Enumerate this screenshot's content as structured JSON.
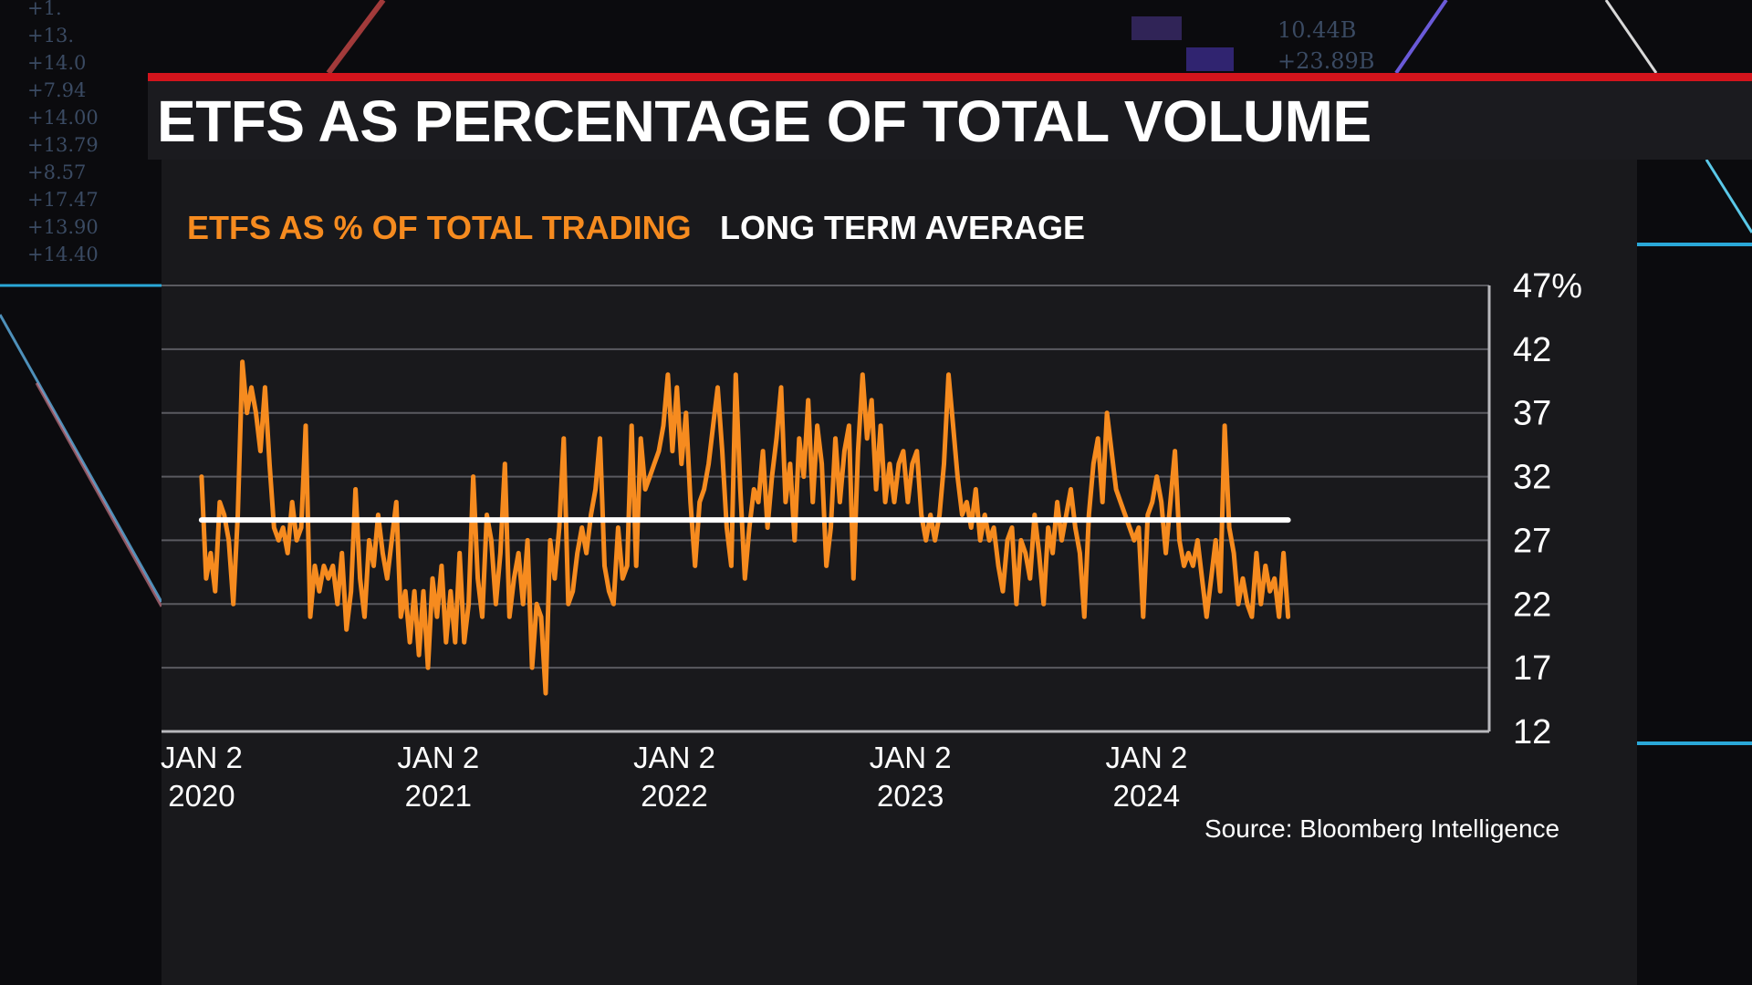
{
  "header": {
    "title": "ETFS AS PERCENTAGE OF TOTAL VOLUME"
  },
  "legend": {
    "series_label": "ETFS AS % OF TOTAL TRADING",
    "average_label": "LONG TERM AVERAGE"
  },
  "source": "Source: Bloomberg Intelligence",
  "background_ticker": [
    "+1.",
    "+13.",
    "+14.0",
    "+7.94",
    "+14.00",
    "+13.79",
    "+8.57",
    "+17.47",
    "+13.90",
    "+14.40",
    "10.44B",
    "+23.89B"
  ],
  "colors": {
    "series": "#f68b1f",
    "average": "#ffffff",
    "accent_red": "#d3141c",
    "gridline": "#5a5a60",
    "background": "#19191c"
  },
  "chart_data": {
    "type": "line",
    "title": "ETFS AS PERCENTAGE OF TOTAL VOLUME",
    "x_tick_labels": [
      {
        "date": "2020-01-02",
        "line1": "JAN 2",
        "line2": "2020"
      },
      {
        "date": "2021-01-02",
        "line1": "JAN 2",
        "line2": "2021"
      },
      {
        "date": "2022-01-02",
        "line1": "JAN 2",
        "line2": "2022"
      },
      {
        "date": "2023-01-02",
        "line1": "JAN 2",
        "line2": "2023"
      },
      {
        "date": "2024-01-02",
        "line1": "JAN 2",
        "line2": "2024"
      }
    ],
    "y_tick_labels": [
      "47%",
      "42",
      "37",
      "32",
      "27",
      "22",
      "17",
      "12"
    ],
    "y_ticks": [
      47,
      42,
      37,
      32,
      27,
      22,
      17,
      12
    ],
    "ylim": [
      12,
      47
    ],
    "xlim": [
      "2019-11-01",
      "2025-06-15"
    ],
    "grid": true,
    "y_axis_side": "right",
    "series": [
      {
        "name": "ETFS AS % OF TOTAL TRADING",
        "color": "#f68b1f",
        "points": [
          [
            "2020-01-02",
            32
          ],
          [
            "2020-01-09",
            24
          ],
          [
            "2020-01-16",
            26
          ],
          [
            "2020-01-23",
            23
          ],
          [
            "2020-01-30",
            30
          ],
          [
            "2020-02-06",
            29
          ],
          [
            "2020-02-13",
            27
          ],
          [
            "2020-02-20",
            22
          ],
          [
            "2020-02-27",
            29
          ],
          [
            "2020-03-05",
            41
          ],
          [
            "2020-03-12",
            37
          ],
          [
            "2020-03-19",
            39
          ],
          [
            "2020-03-26",
            37
          ],
          [
            "2020-04-02",
            34
          ],
          [
            "2020-04-09",
            39
          ],
          [
            "2020-04-16",
            33
          ],
          [
            "2020-04-23",
            28
          ],
          [
            "2020-04-30",
            27
          ],
          [
            "2020-05-07",
            28
          ],
          [
            "2020-05-14",
            26
          ],
          [
            "2020-05-21",
            30
          ],
          [
            "2020-05-28",
            27
          ],
          [
            "2020-06-04",
            28
          ],
          [
            "2020-06-11",
            36
          ],
          [
            "2020-06-18",
            21
          ],
          [
            "2020-06-25",
            25
          ],
          [
            "2020-07-02",
            23
          ],
          [
            "2020-07-09",
            25
          ],
          [
            "2020-07-16",
            24
          ],
          [
            "2020-07-23",
            25
          ],
          [
            "2020-07-30",
            22
          ],
          [
            "2020-08-06",
            26
          ],
          [
            "2020-08-13",
            20
          ],
          [
            "2020-08-20",
            23
          ],
          [
            "2020-08-27",
            31
          ],
          [
            "2020-09-03",
            24
          ],
          [
            "2020-09-10",
            21
          ],
          [
            "2020-09-17",
            27
          ],
          [
            "2020-09-24",
            25
          ],
          [
            "2020-10-01",
            29
          ],
          [
            "2020-10-08",
            26
          ],
          [
            "2020-10-15",
            24
          ],
          [
            "2020-10-22",
            27
          ],
          [
            "2020-10-29",
            30
          ],
          [
            "2020-11-05",
            21
          ],
          [
            "2020-11-12",
            23
          ],
          [
            "2020-11-19",
            19
          ],
          [
            "2020-11-26",
            23
          ],
          [
            "2020-12-03",
            18
          ],
          [
            "2020-12-10",
            23
          ],
          [
            "2020-12-17",
            17
          ],
          [
            "2020-12-24",
            24
          ],
          [
            "2020-12-31",
            21
          ],
          [
            "2021-01-07",
            25
          ],
          [
            "2021-01-14",
            19
          ],
          [
            "2021-01-21",
            23
          ],
          [
            "2021-01-28",
            19
          ],
          [
            "2021-02-04",
            26
          ],
          [
            "2021-02-11",
            19
          ],
          [
            "2021-02-18",
            22
          ],
          [
            "2021-02-25",
            32
          ],
          [
            "2021-03-04",
            24
          ],
          [
            "2021-03-11",
            21
          ],
          [
            "2021-03-18",
            29
          ],
          [
            "2021-03-25",
            27
          ],
          [
            "2021-04-01",
            22
          ],
          [
            "2021-04-08",
            26
          ],
          [
            "2021-04-15",
            33
          ],
          [
            "2021-04-22",
            21
          ],
          [
            "2021-04-29",
            24
          ],
          [
            "2021-05-06",
            26
          ],
          [
            "2021-05-13",
            22
          ],
          [
            "2021-05-20",
            27
          ],
          [
            "2021-05-27",
            17
          ],
          [
            "2021-06-03",
            22
          ],
          [
            "2021-06-10",
            21
          ],
          [
            "2021-06-17",
            15
          ],
          [
            "2021-06-24",
            27
          ],
          [
            "2021-07-01",
            24
          ],
          [
            "2021-07-08",
            28
          ],
          [
            "2021-07-15",
            35
          ],
          [
            "2021-07-22",
            22
          ],
          [
            "2021-07-29",
            23
          ],
          [
            "2021-08-05",
            26
          ],
          [
            "2021-08-12",
            28
          ],
          [
            "2021-08-19",
            26
          ],
          [
            "2021-08-26",
            29
          ],
          [
            "2021-09-02",
            31
          ],
          [
            "2021-09-09",
            35
          ],
          [
            "2021-09-16",
            25
          ],
          [
            "2021-09-23",
            23
          ],
          [
            "2021-09-30",
            22
          ],
          [
            "2021-10-07",
            28
          ],
          [
            "2021-10-14",
            24
          ],
          [
            "2021-10-21",
            25
          ],
          [
            "2021-10-28",
            36
          ],
          [
            "2021-11-04",
            25
          ],
          [
            "2021-11-11",
            35
          ],
          [
            "2021-11-18",
            31
          ],
          [
            "2021-11-25",
            32
          ],
          [
            "2021-12-02",
            33
          ],
          [
            "2021-12-09",
            34
          ],
          [
            "2021-12-16",
            36
          ],
          [
            "2021-12-23",
            40
          ],
          [
            "2021-12-30",
            34
          ],
          [
            "2022-01-06",
            39
          ],
          [
            "2022-01-13",
            33
          ],
          [
            "2022-01-20",
            37
          ],
          [
            "2022-01-27",
            30
          ],
          [
            "2022-02-03",
            25
          ],
          [
            "2022-02-10",
            30
          ],
          [
            "2022-02-17",
            31
          ],
          [
            "2022-02-24",
            33
          ],
          [
            "2022-03-03",
            36
          ],
          [
            "2022-03-10",
            39
          ],
          [
            "2022-03-17",
            34
          ],
          [
            "2022-03-24",
            28
          ],
          [
            "2022-03-31",
            25
          ],
          [
            "2022-04-07",
            40
          ],
          [
            "2022-04-14",
            31
          ],
          [
            "2022-04-21",
            24
          ],
          [
            "2022-04-28",
            28
          ],
          [
            "2022-05-05",
            31
          ],
          [
            "2022-05-12",
            30
          ],
          [
            "2022-05-19",
            34
          ],
          [
            "2022-05-26",
            28
          ],
          [
            "2022-06-02",
            32
          ],
          [
            "2022-06-09",
            35
          ],
          [
            "2022-06-16",
            39
          ],
          [
            "2022-06-23",
            30
          ],
          [
            "2022-06-30",
            33
          ],
          [
            "2022-07-07",
            27
          ],
          [
            "2022-07-14",
            35
          ],
          [
            "2022-07-21",
            32
          ],
          [
            "2022-07-28",
            38
          ],
          [
            "2022-08-04",
            30
          ],
          [
            "2022-08-11",
            36
          ],
          [
            "2022-08-18",
            33
          ],
          [
            "2022-08-25",
            25
          ],
          [
            "2022-09-01",
            28
          ],
          [
            "2022-09-08",
            35
          ],
          [
            "2022-09-15",
            30
          ],
          [
            "2022-09-22",
            34
          ],
          [
            "2022-09-29",
            36
          ],
          [
            "2022-10-06",
            24
          ],
          [
            "2022-10-13",
            34
          ],
          [
            "2022-10-20",
            40
          ],
          [
            "2022-10-27",
            35
          ],
          [
            "2022-11-03",
            38
          ],
          [
            "2022-11-10",
            31
          ],
          [
            "2022-11-17",
            36
          ],
          [
            "2022-11-24",
            30
          ],
          [
            "2022-12-01",
            33
          ],
          [
            "2022-12-08",
            30
          ],
          [
            "2022-12-15",
            33
          ],
          [
            "2022-12-22",
            34
          ],
          [
            "2022-12-29",
            30
          ],
          [
            "2023-01-05",
            33
          ],
          [
            "2023-01-12",
            34
          ],
          [
            "2023-01-19",
            29
          ],
          [
            "2023-01-26",
            27
          ],
          [
            "2023-02-02",
            29
          ],
          [
            "2023-02-09",
            27
          ],
          [
            "2023-02-16",
            29
          ],
          [
            "2023-02-23",
            33
          ],
          [
            "2023-03-02",
            40
          ],
          [
            "2023-03-09",
            36
          ],
          [
            "2023-03-16",
            32
          ],
          [
            "2023-03-23",
            29
          ],
          [
            "2023-03-30",
            30
          ],
          [
            "2023-04-06",
            28
          ],
          [
            "2023-04-13",
            31
          ],
          [
            "2023-04-20",
            27
          ],
          [
            "2023-04-27",
            29
          ],
          [
            "2023-05-04",
            27
          ],
          [
            "2023-05-11",
            28
          ],
          [
            "2023-05-18",
            25
          ],
          [
            "2023-05-25",
            23
          ],
          [
            "2023-06-01",
            27
          ],
          [
            "2023-06-08",
            28
          ],
          [
            "2023-06-15",
            22
          ],
          [
            "2023-06-22",
            27
          ],
          [
            "2023-06-29",
            26
          ],
          [
            "2023-07-06",
            24
          ],
          [
            "2023-07-13",
            29
          ],
          [
            "2023-07-20",
            26
          ],
          [
            "2023-07-27",
            22
          ],
          [
            "2023-08-03",
            28
          ],
          [
            "2023-08-10",
            26
          ],
          [
            "2023-08-17",
            30
          ],
          [
            "2023-08-24",
            27
          ],
          [
            "2023-08-31",
            29
          ],
          [
            "2023-09-07",
            31
          ],
          [
            "2023-09-14",
            28
          ],
          [
            "2023-09-21",
            26
          ],
          [
            "2023-09-28",
            21
          ],
          [
            "2023-10-05",
            29
          ],
          [
            "2023-10-12",
            33
          ],
          [
            "2023-10-19",
            35
          ],
          [
            "2023-10-26",
            30
          ],
          [
            "2023-11-02",
            37
          ],
          [
            "2023-11-09",
            34
          ],
          [
            "2023-11-16",
            31
          ],
          [
            "2023-11-23",
            30
          ],
          [
            "2023-11-30",
            29
          ],
          [
            "2023-12-07",
            28
          ],
          [
            "2023-12-14",
            27
          ],
          [
            "2023-12-21",
            28
          ],
          [
            "2023-12-28",
            21
          ],
          [
            "2024-01-04",
            29
          ],
          [
            "2024-01-11",
            30
          ],
          [
            "2024-01-18",
            32
          ],
          [
            "2024-01-25",
            30
          ],
          [
            "2024-02-01",
            26
          ],
          [
            "2024-02-08",
            30
          ],
          [
            "2024-02-15",
            34
          ],
          [
            "2024-02-22",
            27
          ],
          [
            "2024-02-29",
            25
          ],
          [
            "2024-03-07",
            26
          ],
          [
            "2024-03-14",
            25
          ],
          [
            "2024-03-21",
            27
          ],
          [
            "2024-03-28",
            24
          ],
          [
            "2024-04-04",
            21
          ],
          [
            "2024-04-11",
            24
          ],
          [
            "2024-04-18",
            27
          ],
          [
            "2024-04-25",
            23
          ],
          [
            "2024-05-02",
            36
          ],
          [
            "2024-05-09",
            28
          ],
          [
            "2024-05-16",
            26
          ],
          [
            "2024-05-23",
            22
          ],
          [
            "2024-05-30",
            24
          ],
          [
            "2024-06-06",
            22
          ],
          [
            "2024-06-13",
            21
          ],
          [
            "2024-06-20",
            26
          ],
          [
            "2024-06-27",
            22
          ],
          [
            "2024-07-04",
            25
          ],
          [
            "2024-07-11",
            23
          ],
          [
            "2024-07-18",
            24
          ],
          [
            "2024-07-25",
            21
          ],
          [
            "2024-08-01",
            26
          ],
          [
            "2024-08-08",
            21
          ]
        ]
      },
      {
        "name": "LONG TERM AVERAGE",
        "color": "#ffffff",
        "points": [
          [
            "2020-01-02",
            28.6
          ],
          [
            "2024-08-08",
            28.6
          ]
        ]
      }
    ]
  }
}
